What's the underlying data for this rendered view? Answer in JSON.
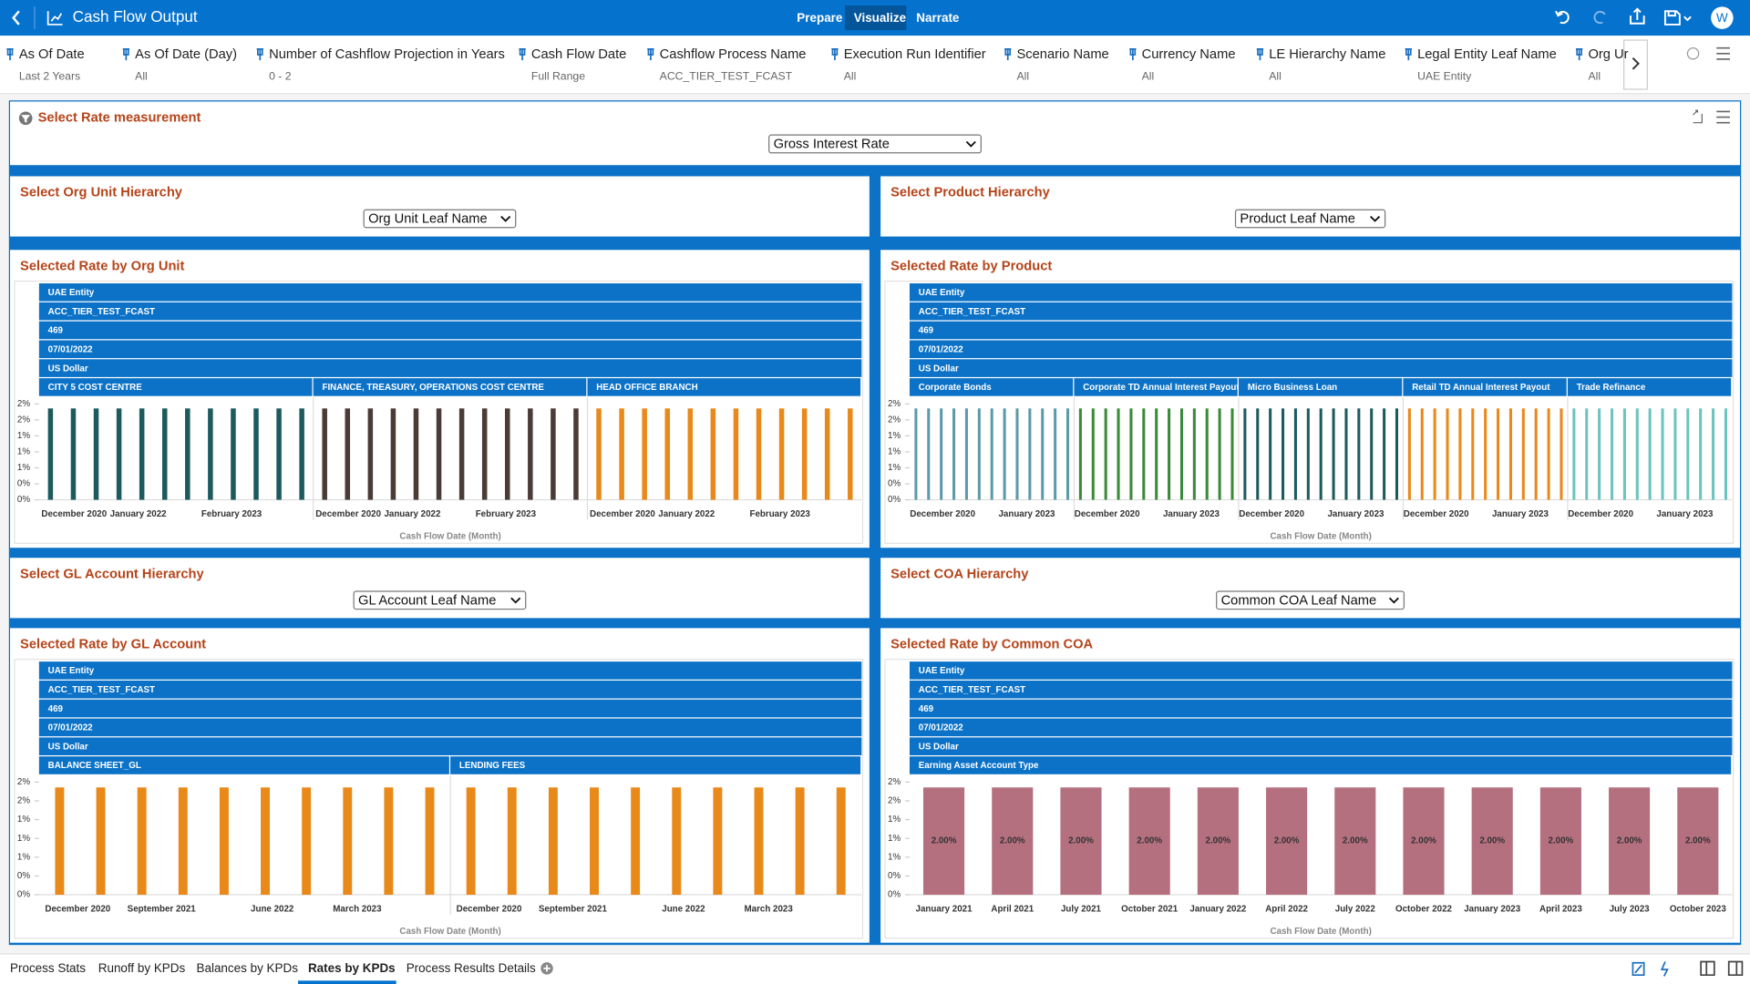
{
  "app": {
    "title": "Cash Flow Output",
    "tabs": [
      {
        "label": "Prepare"
      },
      {
        "label": "Visualize",
        "active": true
      },
      {
        "label": "Narrate"
      }
    ],
    "user": "W"
  },
  "filters": [
    {
      "name": "As Of Date",
      "value": "Last 2 Years"
    },
    {
      "name": "As Of Date (Day)",
      "value": "All"
    },
    {
      "name": "Number of Cashflow Projection in Years",
      "value": "0 - 2"
    },
    {
      "name": "Cash Flow Date",
      "value": "Full Range"
    },
    {
      "name": "Cashflow Process Name",
      "value": "ACC_TIER_TEST_FCAST"
    },
    {
      "name": "Execution Run Identifier",
      "value": "All"
    },
    {
      "name": "Scenario Name",
      "value": "All"
    },
    {
      "name": "Currency Name",
      "value": "All"
    },
    {
      "name": "LE Hierarchy Name",
      "value": "All"
    },
    {
      "name": "Legal Entity Leaf Name",
      "value": "UAE Entity"
    },
    {
      "name": "Org Ur",
      "value": "All"
    }
  ],
  "rate_measurement": {
    "title": "Select Rate measurement",
    "selected": "Gross Interest Rate"
  },
  "selectors": [
    {
      "title": "Select Org Unit Hierarchy",
      "selected": "Org Unit Leaf Name"
    },
    {
      "title": "Select Product Hierarchy",
      "selected": "Product Leaf Name"
    },
    {
      "title": "Select GL Account Hierarchy",
      "selected": "GL Account Leaf Name"
    },
    {
      "title": "Select COA Hierarchy",
      "selected": "Common COA Leaf Name"
    }
  ],
  "charts": [
    {
      "type": "bar",
      "title": "Selected Rate by Org Unit",
      "header_rows": [
        "UAE Entity",
        "ACC_TIER_TEST_FCAST",
        "469",
        "07/01/2022",
        "US Dollar"
      ],
      "x_label": "Cash Flow Date (Month)",
      "ylim": [
        0,
        2.1
      ],
      "yticks": [
        {
          "value": 0,
          "label": "0%"
        },
        {
          "value": 0.35,
          "label": "0%"
        },
        {
          "value": 0.7,
          "label": "1%"
        },
        {
          "value": 1.05,
          "label": "1%"
        },
        {
          "value": 1.4,
          "label": "1%"
        },
        {
          "value": 1.75,
          "label": "2%"
        },
        {
          "value": 2.1,
          "label": "2%"
        }
      ],
      "panels": [
        {
          "name": "CITY 5 COST CENTRE",
          "color": "#1d5a5e",
          "categories": [
            "December 2020",
            null,
            null,
            "January 2022",
            null,
            null,
            null,
            "February 2023",
            null,
            null,
            null,
            null
          ],
          "values": [
            2,
            2,
            2,
            2,
            2,
            2,
            2,
            2,
            2,
            2,
            2,
            2
          ]
        },
        {
          "name": "FINANCE, TREASURY, OPERATIONS COST CENTRE",
          "color": "#4a3b36",
          "categories": [
            "December 2020",
            null,
            null,
            "January 2022",
            null,
            null,
            null,
            "February 2023",
            null,
            null,
            null,
            null
          ],
          "values": [
            2,
            2,
            2,
            2,
            2,
            2,
            2,
            2,
            2,
            2,
            2,
            2
          ]
        },
        {
          "name": "HEAD OFFICE BRANCH",
          "color": "#e8891a",
          "categories": [
            "December 2020",
            null,
            null,
            "January 2022",
            null,
            null,
            null,
            "February 2023",
            null,
            null,
            null,
            null
          ],
          "values": [
            2,
            2,
            2,
            2,
            2,
            2,
            2,
            2,
            2,
            2,
            2,
            2
          ]
        }
      ]
    },
    {
      "type": "bar",
      "title": "Selected Rate by Product",
      "header_rows": [
        "UAE Entity",
        "ACC_TIER_TEST_FCAST",
        "469",
        "07/01/2022",
        "US Dollar"
      ],
      "x_label": "Cash Flow Date (Month)",
      "ylim": [
        0,
        2.1
      ],
      "yticks": [
        {
          "value": 0,
          "label": "0%"
        },
        {
          "value": 0.35,
          "label": "0%"
        },
        {
          "value": 0.7,
          "label": "1%"
        },
        {
          "value": 1.05,
          "label": "1%"
        },
        {
          "value": 1.4,
          "label": "1%"
        },
        {
          "value": 1.75,
          "label": "2%"
        },
        {
          "value": 2.1,
          "label": "2%"
        }
      ],
      "panels": [
        {
          "name": "Corporate Bonds",
          "color": "#5b9aa8",
          "categories": [
            "December 2020",
            null,
            null,
            null,
            null,
            null,
            null,
            "January 2023",
            null,
            null,
            null,
            null,
            null
          ],
          "values": [
            2,
            2,
            2,
            2,
            2,
            2,
            2,
            2,
            2,
            2,
            2,
            2,
            2
          ]
        },
        {
          "name": "Corporate TD Annual Interest Payout",
          "color": "#3a8a3a",
          "categories": [
            "December 2020",
            null,
            null,
            null,
            null,
            null,
            null,
            "January 2023",
            null,
            null,
            null,
            null,
            null
          ],
          "values": [
            2,
            2,
            2,
            2,
            2,
            2,
            2,
            2,
            2,
            2,
            2,
            2,
            2
          ]
        },
        {
          "name": "Micro Business Loan",
          "color": "#1d5a5e",
          "categories": [
            "December 2020",
            null,
            null,
            null,
            null,
            null,
            null,
            "January 2023",
            null,
            null,
            null,
            null,
            null
          ],
          "values": [
            2,
            2,
            2,
            2,
            2,
            2,
            2,
            2,
            2,
            2,
            2,
            2,
            2
          ]
        },
        {
          "name": "Retail TD Annual Interest Payout",
          "color": "#e8891a",
          "categories": [
            "December 2020",
            null,
            null,
            null,
            null,
            null,
            null,
            "January 2023",
            null,
            null,
            null,
            null,
            null
          ],
          "values": [
            2,
            2,
            2,
            2,
            2,
            2,
            2,
            2,
            2,
            2,
            2,
            2,
            2
          ]
        },
        {
          "name": "Trade Refinance",
          "color": "#6cc3c0",
          "categories": [
            "December 2020",
            null,
            null,
            null,
            null,
            null,
            null,
            "January 2023",
            null,
            null,
            null,
            null,
            null
          ],
          "values": [
            2,
            2,
            2,
            2,
            2,
            2,
            2,
            2,
            2,
            2,
            2,
            2,
            2
          ]
        }
      ]
    },
    {
      "type": "bar",
      "title": "Selected Rate by GL Account",
      "header_rows": [
        "UAE Entity",
        "ACC_TIER_TEST_FCAST",
        "469",
        "07/01/2022",
        "US Dollar"
      ],
      "x_label": "Cash Flow Date (Month)",
      "ylim": [
        0,
        2.1
      ],
      "yticks": [
        {
          "value": 0,
          "label": "0%"
        },
        {
          "value": 0.35,
          "label": "0%"
        },
        {
          "value": 0.7,
          "label": "1%"
        },
        {
          "value": 1.05,
          "label": "1%"
        },
        {
          "value": 1.4,
          "label": "1%"
        },
        {
          "value": 1.75,
          "label": "2%"
        },
        {
          "value": 2.1,
          "label": "2%"
        }
      ],
      "panels": [
        {
          "name": "BALANCE SHEET_GL",
          "color": "#e8891a",
          "categories": [
            "December 2020",
            null,
            "September 2021",
            null,
            null,
            "June 2022",
            null,
            "March 2023",
            null,
            null
          ],
          "values": [
            2,
            2,
            2,
            2,
            2,
            2,
            2,
            2,
            2,
            2
          ]
        },
        {
          "name": "LENDING FEES",
          "color": "#e8891a",
          "categories": [
            "December 2020",
            null,
            "September 2021",
            null,
            null,
            "June 2022",
            null,
            "March 2023",
            null,
            null
          ],
          "values": [
            2,
            2,
            2,
            2,
            2,
            2,
            2,
            2,
            2,
            2
          ]
        }
      ]
    },
    {
      "type": "bar",
      "title": "Selected Rate by Common COA",
      "header_rows": [
        "UAE Entity",
        "ACC_TIER_TEST_FCAST",
        "469",
        "07/01/2022",
        "US Dollar"
      ],
      "x_label": "Cash Flow Date (Month)",
      "ylim": [
        0,
        2.1
      ],
      "yticks": [
        {
          "value": 0,
          "label": "0%"
        },
        {
          "value": 0.35,
          "label": "0%"
        },
        {
          "value": 0.7,
          "label": "1%"
        },
        {
          "value": 1.05,
          "label": "1%"
        },
        {
          "value": 1.4,
          "label": "1%"
        },
        {
          "value": 1.75,
          "label": "2%"
        },
        {
          "value": 2.1,
          "label": "2%"
        }
      ],
      "panels": [
        {
          "name": "Earning Asset Account Type",
          "color": "#b5707f",
          "categories": [
            "January 2021",
            "April 2021",
            "July 2021",
            "October 2021",
            "January 2022",
            "April 2022",
            "July 2022",
            "October 2022",
            "January 2023",
            "April 2023",
            "July 2023",
            "October 2023"
          ],
          "values": [
            2,
            2,
            2,
            2,
            2,
            2,
            2,
            2,
            2,
            2,
            2,
            2
          ],
          "value_labels": [
            "2.00%",
            "2.00%",
            "2.00%",
            "2.00%",
            "2.00%",
            "2.00%",
            "2.00%",
            "2.00%",
            "2.00%",
            "2.00%",
            "2.00%",
            "2.00%"
          ]
        }
      ]
    }
  ],
  "bottom_tabs": [
    {
      "label": "Process Stats"
    },
    {
      "label": "Runoff by KPDs"
    },
    {
      "label": "Balances by KPDs"
    },
    {
      "label": "Rates by KPDs",
      "active": true
    },
    {
      "label": "Process Results Details"
    }
  ]
}
